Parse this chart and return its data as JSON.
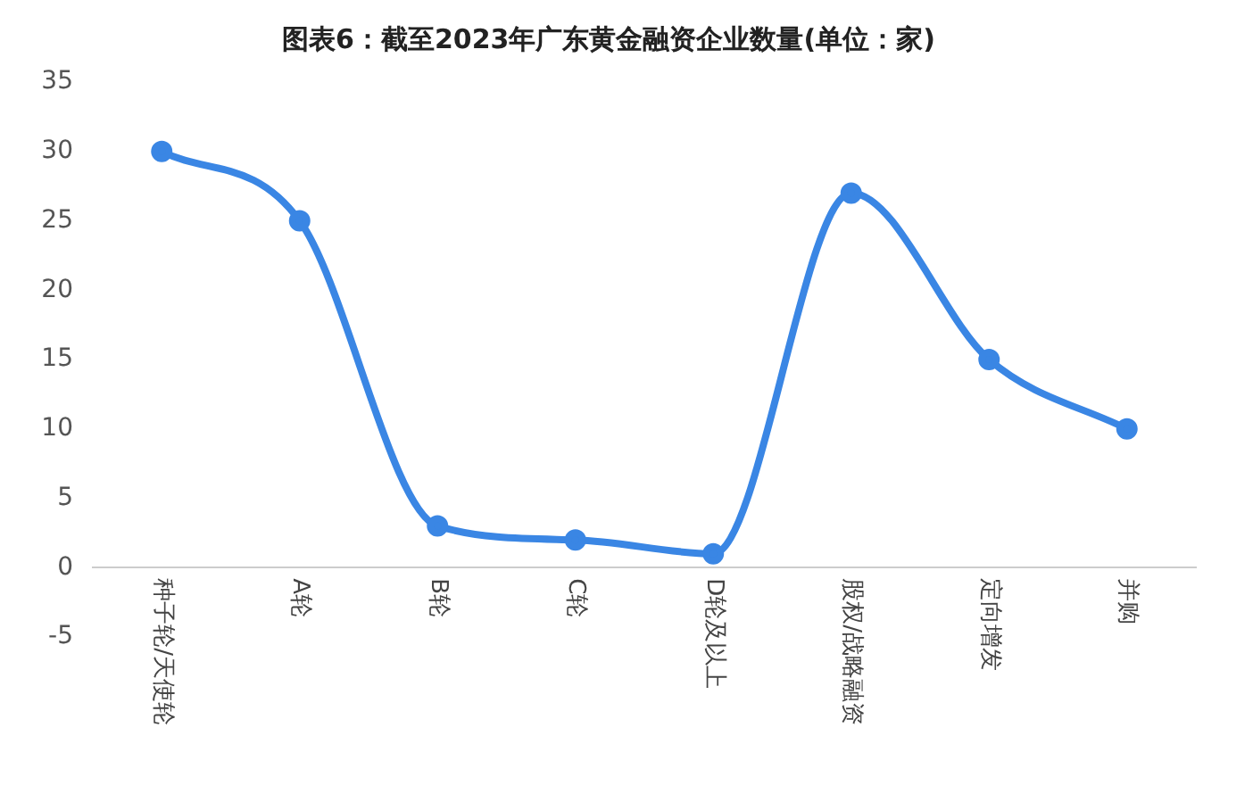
{
  "chart_data": {
    "type": "line",
    "title": "图表6：截至2023年广东黄金融资企业数量(单位：家)",
    "categories": [
      "种子轮/天使轮",
      "A轮",
      "B轮",
      "C轮",
      "D轮及以上",
      "股权/战略融资",
      "定向增发",
      "并购"
    ],
    "series": [
      {
        "color": "#3a86e4",
        "values": [
          30,
          25,
          3,
          2,
          1,
          27,
          15,
          10
        ]
      }
    ],
    "ylim": [
      -5,
      35
    ],
    "yticks": [
      -5,
      0,
      5,
      10,
      15,
      20,
      25,
      30,
      35
    ],
    "grid": false,
    "legend": false,
    "marker": "circle",
    "line_style": "solid"
  }
}
